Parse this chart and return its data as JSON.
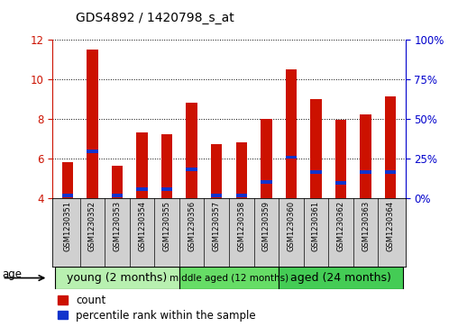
{
  "title": "GDS4892 / 1420798_s_at",
  "samples": [
    "GSM1230351",
    "GSM1230352",
    "GSM1230353",
    "GSM1230354",
    "GSM1230355",
    "GSM1230356",
    "GSM1230357",
    "GSM1230358",
    "GSM1230359",
    "GSM1230360",
    "GSM1230361",
    "GSM1230362",
    "GSM1230363",
    "GSM1230364"
  ],
  "count_values": [
    5.8,
    11.5,
    5.6,
    7.3,
    7.2,
    8.8,
    6.7,
    6.8,
    8.0,
    10.5,
    9.0,
    7.95,
    8.2,
    9.1
  ],
  "percentile_values": [
    4.12,
    6.35,
    4.12,
    4.42,
    4.45,
    5.45,
    4.12,
    4.12,
    4.82,
    6.05,
    5.32,
    4.75,
    5.32,
    5.32
  ],
  "ylim_left": [
    4,
    12
  ],
  "ylim_right": [
    0,
    100
  ],
  "right_ticks": [
    0,
    25,
    50,
    75,
    100
  ],
  "right_tick_labels": [
    "0%",
    "25%",
    "50%",
    "75%",
    "100%"
  ],
  "left_ticks": [
    4,
    6,
    8,
    10,
    12
  ],
  "bar_color": "#cc1100",
  "percentile_color": "#1133cc",
  "groups": [
    {
      "label": "young (2 months)",
      "start": 0,
      "end": 4,
      "color": "#b8f0b0"
    },
    {
      "label": "middle aged (12 months)",
      "start": 5,
      "end": 8,
      "color": "#66dd66"
    },
    {
      "label": "aged (24 months)",
      "start": 9,
      "end": 13,
      "color": "#44cc55"
    }
  ],
  "bar_width": 0.45,
  "ytick_color_left": "#cc1100",
  "ytick_color_right": "#0000cc",
  "grid_color": "#000000",
  "tick_area_color": "#d0d0d0",
  "age_label": "age",
  "legend_count": "count",
  "legend_percentile": "percentile rank within the sample"
}
